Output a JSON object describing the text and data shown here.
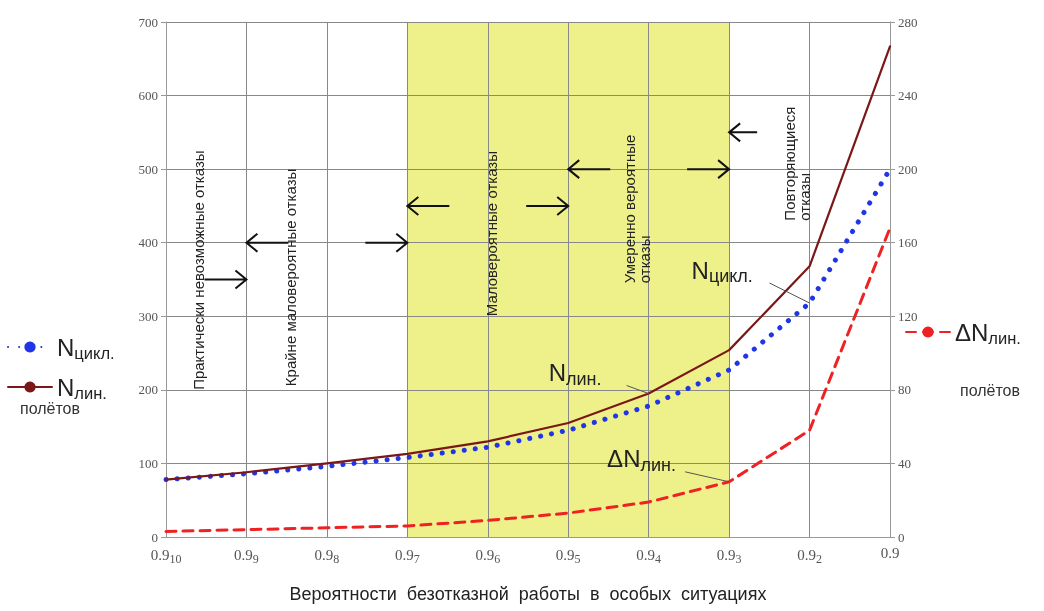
{
  "chart_data": {
    "type": "line",
    "xlabel": "Вероятности  безотказной  работы  в  особых  ситуациях",
    "ylabel": "полётов",
    "y2label": "полётов",
    "categories": [
      "0.9$_{10}$",
      "0.9$_{9}$",
      "0.9$_{8}$",
      "0.9$_{7}$",
      "0.9$_{6}$",
      "0.9$_{5}$",
      "0.9$_{4}$",
      "0.9$_{3}$",
      "0.9$_{2}$",
      "0.9"
    ],
    "series": [
      {
        "name": "N$_{цикл.}$",
        "color": "#1f35e6",
        "line_style": "dotted",
        "values": [
          78,
          86,
          96,
          108,
          122,
          145,
          178,
          227,
          318,
          500
        ]
      },
      {
        "name": "N$_{лин.}$",
        "color": "#7a1818",
        "line_style": "solid",
        "values": [
          78,
          88,
          100,
          113,
          130,
          155,
          195,
          254,
          368,
          667
        ]
      },
      {
        "name": "ΔN$_{лин.}$",
        "color": "#ee2222",
        "line_style": "dashed",
        "axis": "y2",
        "values": [
          3,
          4,
          5,
          6,
          9,
          13,
          19,
          30,
          58,
          168
        ]
      }
    ],
    "ylim": [
      0,
      700
    ],
    "yticks": [
      0,
      100,
      200,
      300,
      400,
      500,
      600,
      700
    ],
    "y2lim": [
      0,
      280
    ],
    "y2ticks": [
      0,
      40,
      80,
      120,
      160,
      200,
      240,
      280
    ],
    "grid": true,
    "marker": "none",
    "legend": "left",
    "bands": [
      {
        "axis": "x",
        "from": "0.9$_{7}$",
        "to": "0.9$_{3}$",
        "color": "#eef18a"
      }
    ],
    "annotations": [
      "Практически невозможные отказы",
      "Крайне маловероятные отказы",
      "Маловероятные отказы",
      "Умеренно вероятные\nотказы",
      "Повторяющиеся\nотказы",
      {
        "text": "N$_{лин.}$",
        "x": "0.9$_{4}$",
        "y": 195
      },
      {
        "text": "N$_{цикл.}$",
        "x": "0.9$_{2}$",
        "y": 318
      },
      {
        "text": "ΔN$_{лин.}$",
        "x": "0.9$_{3}$",
        "y": 75
      }
    ]
  }
}
